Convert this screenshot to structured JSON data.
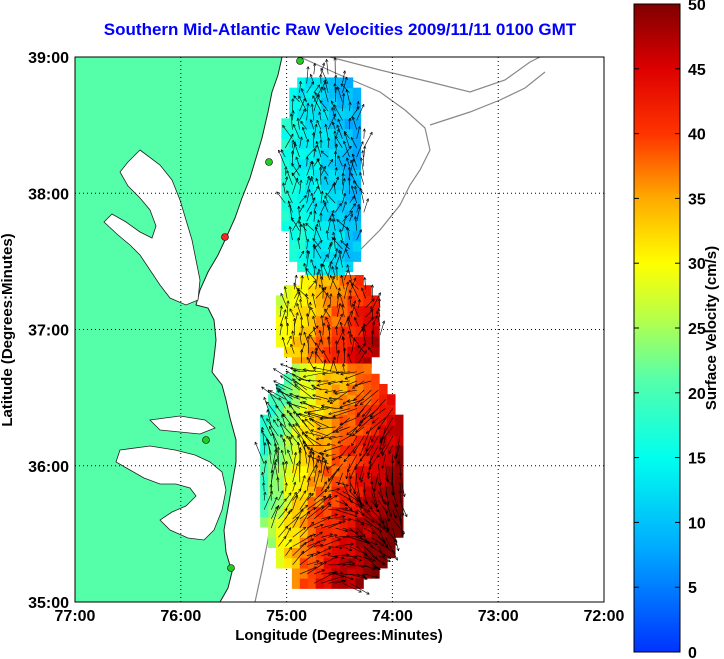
{
  "chart_data": {
    "type": "heatmap",
    "title": "Southern Mid-Atlantic Raw Velocities 2009/11/11 0100 GMT",
    "xlabel": "Longitude (Degrees:Minutes)",
    "ylabel": "Latitude (Degrees:Minutes)",
    "x_ticks": [
      "77:00",
      "76:00",
      "75:00",
      "74:00",
      "73:00",
      "72:00"
    ],
    "y_ticks": [
      "39:00",
      "38:00",
      "37:00",
      "36:00",
      "35:00"
    ],
    "xlim": [
      -77,
      -72
    ],
    "ylim": [
      35,
      39
    ],
    "grid": true,
    "colorbar": {
      "label": "Surface Velocity (cm/s)",
      "range": [
        0,
        50
      ],
      "ticks": [
        "50",
        "45",
        "40",
        "35",
        "30",
        "25",
        "20",
        "15",
        "10",
        "5",
        "0"
      ],
      "colormap": "jet"
    },
    "colors": {
      "land": "#55ffaa",
      "title": "#0000ff",
      "coast": "#222222",
      "isobath": "#888888",
      "station": "#22cc22",
      "station_off": "#ff2222"
    },
    "regions": [
      {
        "lon": [
          -75.05,
          -74.3
        ],
        "lat": [
          37.35,
          38.85
        ],
        "speed_range": [
          5,
          30
        ]
      },
      {
        "lon": [
          -75.1,
          -74.15
        ],
        "lat": [
          36.65,
          37.35
        ],
        "speed_range": [
          15,
          50
        ]
      },
      {
        "lon": [
          -75.25,
          -73.95
        ],
        "lat": [
          35.1,
          36.7
        ],
        "speed_range": [
          8,
          50
        ]
      }
    ]
  }
}
